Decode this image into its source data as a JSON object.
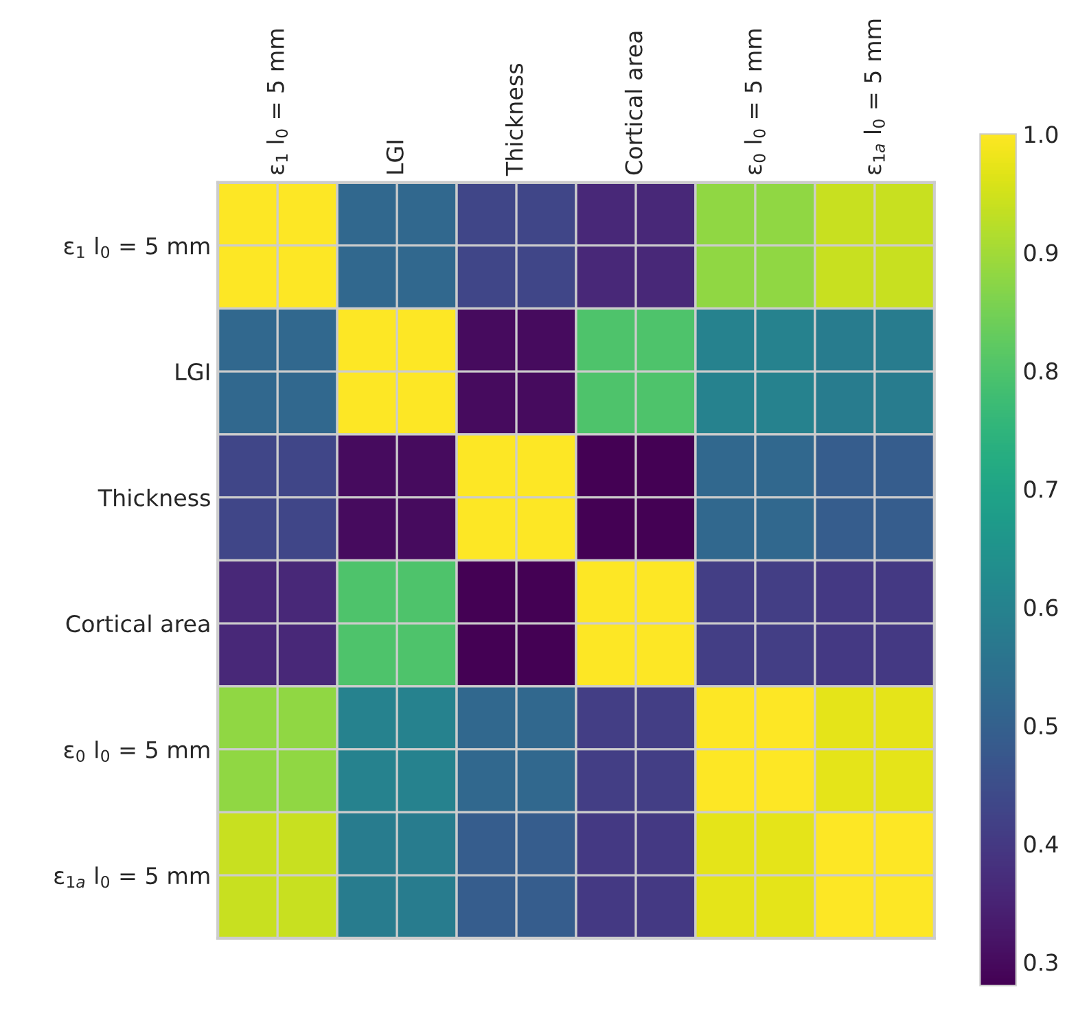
{
  "chart_data": {
    "type": "heatmap",
    "categories": [
      "ε$_{1}$ l$_{0}$ = 5 mm",
      "LGI",
      "Thickness",
      "Cortical area",
      "ε$_{0}$ l$_{0}$ = 5 mm",
      "ε$_{1a}$ l$_{0}$ = 5 mm"
    ],
    "y_categories": [
      "ε$_{1}$ l$_{0}$ = 5 mm",
      "LGI",
      "Thickness",
      "Cortical area",
      "ε$_{0}$ l$_{0}$ = 5 mm",
      "ε$_{1a}$ l$_{0}$ = 5 mm"
    ],
    "cells": [
      [
        1.0,
        0.52,
        0.43,
        0.36,
        0.88,
        0.94
      ],
      [
        0.52,
        1.0,
        0.3,
        0.8,
        0.6,
        0.58
      ],
      [
        0.43,
        0.3,
        1.0,
        0.28,
        0.52,
        0.49
      ],
      [
        0.36,
        0.8,
        0.28,
        1.0,
        0.41,
        0.4
      ],
      [
        0.88,
        0.6,
        0.52,
        0.41,
        1.0,
        0.97
      ],
      [
        0.94,
        0.58,
        0.49,
        0.4,
        0.97,
        1.0
      ]
    ],
    "clim": [
      0.28,
      1
    ],
    "cticks": [
      0.3,
      0.4,
      0.5,
      0.6,
      0.7,
      0.8,
      0.9,
      {
        "value": 1,
        "label": "1.0"
      }
    ],
    "grid": true
  }
}
